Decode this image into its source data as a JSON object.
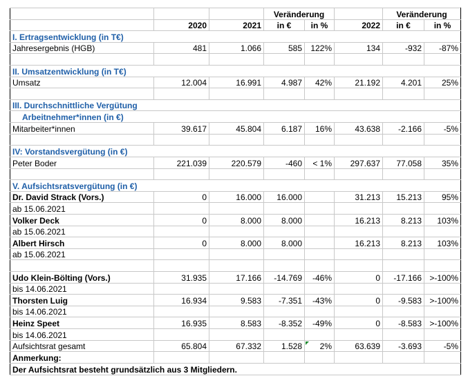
{
  "header": {
    "change": "Veränderung",
    "y2020": "2020",
    "y2021": "2021",
    "y2022": "2022",
    "in_eur": "in €",
    "in_pct": "in %"
  },
  "sections": {
    "s1": "I. Ertragsentwicklung (in T€)",
    "s2": "II. Umsatzentwicklung (in T€)",
    "s3a": "III. Durchschnittliche Vergütung",
    "s3b": "Arbeitnehmer*innen (in €)",
    "s4": "IV: Vorstandsvergütung (in €)",
    "s5": "V. Aufsichtsratsvergütung (in €)"
  },
  "rows": {
    "jahres": {
      "label": "Jahresergebnis (HGB)",
      "v2020": "481",
      "v2021": "1.066",
      "ch1": "585",
      "pct1": "122%",
      "v2022": "134",
      "ch2": "-932",
      "pct2": "-87%"
    },
    "umsatz": {
      "label": "Umsatz",
      "v2020": "12.004",
      "v2021": "16.991",
      "ch1": "4.987",
      "pct1": "42%",
      "v2022": "21.192",
      "ch2": "4.201",
      "pct2": "25%"
    },
    "mitarb": {
      "label": "Mitarbeiter*innen",
      "v2020": "39.617",
      "v2021": "45.804",
      "ch1": "6.187",
      "pct1": "16%",
      "v2022": "43.638",
      "ch2": "-2.166",
      "pct2": "-5%"
    },
    "boder": {
      "label": "Peter Boder",
      "v2020": "221.039",
      "v2021": "220.579",
      "ch1": "-460",
      "pct1": "< 1%",
      "v2022": "297.637",
      "ch2": "77.058",
      "pct2": "35%"
    },
    "strack": {
      "label": "Dr. David Strack (Vors.)",
      "v2020": "0",
      "v2021": "16.000",
      "ch1": "16.000",
      "pct1": "",
      "v2022": "31.213",
      "ch2": "15.213",
      "pct2": "95%",
      "note": "ab 15.06.2021"
    },
    "deck": {
      "label": "Volker Deck",
      "v2020": "0",
      "v2021": "8.000",
      "ch1": "8.000",
      "pct1": "",
      "v2022": "16.213",
      "ch2": "8.213",
      "pct2": "103%",
      "note": "ab 15.06.2021"
    },
    "hirsch": {
      "label": "Albert Hirsch",
      "v2020": "0",
      "v2021": "8.000",
      "ch1": "8.000",
      "pct1": "",
      "v2022": "16.213",
      "ch2": "8.213",
      "pct2": "103%",
      "note": "ab 15.06.2021"
    },
    "klein": {
      "label": "Udo Klein-Bölting (Vors.)",
      "v2020": "31.935",
      "v2021": "17.166",
      "ch1": "-14.769",
      "pct1": "-46%",
      "v2022": "0",
      "ch2": "-17.166",
      "pct2": ">-100%",
      "note": "bis 14.06.2021"
    },
    "luig": {
      "label": "Thorsten Luig",
      "v2020": "16.934",
      "v2021": "9.583",
      "ch1": "-7.351",
      "pct1": "-43%",
      "v2022": "0",
      "ch2": "-9.583",
      "pct2": ">-100%",
      "note": "bis 14.06.2021"
    },
    "speet": {
      "label": "Heinz Speet",
      "v2020": "16.935",
      "v2021": "8.583",
      "ch1": "-8.352",
      "pct1": "-49%",
      "v2022": "0",
      "ch2": "-8.583",
      "pct2": ">-100%",
      "note": "bis 14.06.2021"
    },
    "total": {
      "label": "Aufsichtsrat gesamt",
      "v2020": "65.804",
      "v2021": "67.332",
      "ch1": "1.528",
      "pct1": "2%",
      "v2022": "63.639",
      "ch2": "-3.693",
      "pct2": "-5%"
    }
  },
  "footnote": {
    "title": "Anmerkung:",
    "text": "Der Aufsichtsrat besteht grundsätzlich aus 3 Mitgliedern."
  },
  "colors": {
    "section": "#1f5fa8",
    "marker": "#1e8a2e"
  }
}
